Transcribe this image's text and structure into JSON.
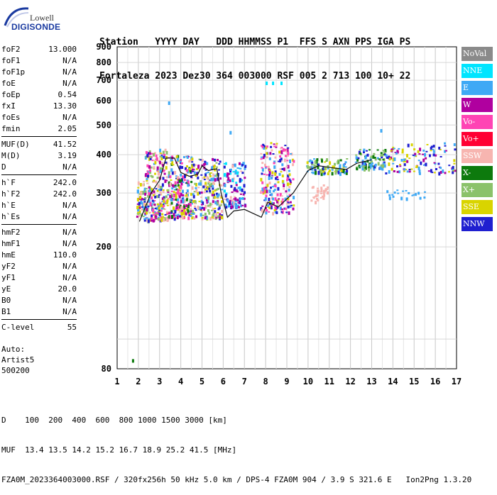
{
  "logo": {
    "line1": "Lowell",
    "line2": "DIGISONDE"
  },
  "header": {
    "line1": "Station   YYYY DAY   DDD HHMMSS P1  FFS S AXN PPS IGA PS",
    "line2": "Fortaleza 2023 Dez30 364 003000 RSF 005 2 713 100 10+ 22"
  },
  "parameters": [
    [
      {
        "label": "foF2",
        "value": "13.000"
      },
      {
        "label": "foF1",
        "value": "N/A"
      },
      {
        "label": "foF1p",
        "value": "N/A"
      },
      {
        "label": "foE",
        "value": "N/A"
      },
      {
        "label": "foEp",
        "value": "0.54"
      },
      {
        "label": "fxI",
        "value": "13.30"
      },
      {
        "label": "foEs",
        "value": "N/A"
      },
      {
        "label": "fmin",
        "value": "2.05"
      }
    ],
    [
      {
        "label": "MUF(D)",
        "value": "41.52"
      },
      {
        "label": "M(D)",
        "value": "3.19"
      },
      {
        "label": "D",
        "value": "N/A"
      }
    ],
    [
      {
        "label": "h`F",
        "value": "242.0"
      },
      {
        "label": "h`F2",
        "value": "242.0"
      },
      {
        "label": "h`E",
        "value": "N/A"
      },
      {
        "label": "h`Es",
        "value": "N/A"
      }
    ],
    [
      {
        "label": "hmF2",
        "value": "N/A"
      },
      {
        "label": "hmF1",
        "value": "N/A"
      },
      {
        "label": "hmE",
        "value": "110.0"
      },
      {
        "label": "yF2",
        "value": "N/A"
      },
      {
        "label": "yF1",
        "value": "N/A"
      },
      {
        "label": "yE",
        "value": "20.0"
      },
      {
        "label": "B0",
        "value": "N/A"
      },
      {
        "label": "B1",
        "value": "N/A"
      }
    ],
    [
      {
        "label": "C-level",
        "value": "55"
      }
    ]
  ],
  "auto": {
    "line1": "Auto:",
    "line2": "Artist5",
    "line3": "500200"
  },
  "legend": [
    {
      "label": "NoVal",
      "color": "#8a8a8a"
    },
    {
      "label": "NNE",
      "color": "#00e5ff"
    },
    {
      "label": "E",
      "color": "#3fa9f5"
    },
    {
      "label": "W",
      "color": "#b0009f"
    },
    {
      "label": "Vo-",
      "color": "#ff44b4"
    },
    {
      "label": "Vo+",
      "color": "#ff0033"
    },
    {
      "label": "SSW",
      "color": "#f7b5b0"
    },
    {
      "label": "X-",
      "color": "#0d7a0d"
    },
    {
      "label": "X+",
      "color": "#8bc26a"
    },
    {
      "label": "SSE",
      "color": "#d9d400"
    },
    {
      "label": "NNW",
      "color": "#1f1fd0"
    }
  ],
  "footer": {
    "line1": "D    100  200  400  600  800 1000 1500 3000 [km]",
    "line2": "MUF  13.4 13.5 14.2 15.2 16.7 18.9 25.2 41.5 [MHz]",
    "line3": "FZA0M_2023364003000.RSF / 320fx256h 50 kHz 5.0 km / DPS-4 FZA0M 904 / 3.9 S 321.6 E   Ion2Png 1.3.20"
  },
  "chart_data": {
    "type": "scatter",
    "x_ticks": [
      "1",
      "2",
      "3",
      "4",
      "5",
      "6",
      "7",
      "8",
      "9",
      "10",
      "11",
      "12",
      "13",
      "14",
      "15",
      "16",
      "17"
    ],
    "y_ticks": [
      "80",
      "200",
      "300",
      "400",
      "500",
      "600",
      "700",
      "800",
      "900"
    ],
    "xlim": [
      1,
      17
    ],
    "ylim": [
      80,
      900
    ],
    "y_scale": "log",
    "grid": true,
    "echo_clusters": [
      {
        "f": [
          1.9,
          2.3
        ],
        "h": [
          245,
          330
        ],
        "colors": [
          "SSW",
          "W",
          "SSE",
          "E",
          "X+",
          "NNW"
        ],
        "n": 70
      },
      {
        "f": [
          2.3,
          3.4
        ],
        "h": [
          245,
          420
        ],
        "colors": [
          "SSW",
          "W",
          "Vo-",
          "E",
          "SSE",
          "NNW",
          "X+"
        ],
        "n": 260
      },
      {
        "f": [
          3.4,
          4.5
        ],
        "h": [
          250,
          400
        ],
        "colors": [
          "SSW",
          "W",
          "Vo-",
          "E",
          "SSE",
          "NNW",
          "X-"
        ],
        "n": 240
      },
      {
        "f": [
          4.5,
          5.9
        ],
        "h": [
          250,
          390
        ],
        "colors": [
          "SSW",
          "W",
          "E",
          "SSE",
          "NNW",
          "X+"
        ],
        "n": 220
      },
      {
        "f": [
          6.0,
          7.0
        ],
        "h": [
          270,
          380
        ],
        "colors": [
          "E",
          "W",
          "NNE",
          "SSW",
          "NNW"
        ],
        "n": 120
      },
      {
        "f": [
          7.7,
          9.3
        ],
        "h": [
          260,
          440
        ],
        "colors": [
          "SSW",
          "W",
          "Vo-",
          "SSE",
          "NNW",
          "E"
        ],
        "n": 220
      },
      {
        "f": [
          9.9,
          11.8
        ],
        "h": [
          350,
          390
        ],
        "colors": [
          "NNW",
          "X-",
          "X+",
          "E",
          "SSE"
        ],
        "n": 100
      },
      {
        "f": [
          10.1,
          10.9
        ],
        "h": [
          280,
          320
        ],
        "colors": [
          "SSW"
        ],
        "n": 35
      },
      {
        "f": [
          12.2,
          13.6
        ],
        "h": [
          360,
          420
        ],
        "colors": [
          "X-",
          "X+",
          "NNW",
          "E"
        ],
        "n": 90
      },
      {
        "f": [
          13.6,
          16.9
        ],
        "h": [
          350,
          440
        ],
        "colors": [
          "NNW",
          "E",
          "W",
          "SSE"
        ],
        "n": 120
      },
      {
        "f": [
          13.6,
          15.5
        ],
        "h": [
          290,
          310
        ],
        "colors": [
          "E"
        ],
        "n": 20
      }
    ],
    "isolated_points": [
      {
        "f": 1.7,
        "h": 86,
        "color": "X-"
      },
      {
        "f": 3.4,
        "h": 597,
        "color": "E"
      },
      {
        "f": 8.0,
        "h": 693,
        "color": "NNE"
      },
      {
        "f": 8.3,
        "h": 693,
        "color": "NNE"
      },
      {
        "f": 8.7,
        "h": 693,
        "color": "NNE"
      },
      {
        "f": 6.3,
        "h": 478,
        "color": "E"
      },
      {
        "f": 13.4,
        "h": 485,
        "color": "E"
      }
    ],
    "profile_line": {
      "f": [
        2.05,
        2.6,
        3.0,
        3.3,
        3.7,
        4.0,
        4.4,
        4.8,
        5.0,
        5.3,
        5.7,
        5.9,
        6.2,
        6.5,
        7.0,
        7.8,
        8.1,
        8.6,
        9.3,
        10.0,
        10.5,
        11.2,
        11.8,
        12.3,
        13.0
      ],
      "h": [
        242,
        300,
        330,
        390,
        390,
        350,
        340,
        345,
        368,
        355,
        360,
        300,
        250,
        262,
        265,
        250,
        280,
        270,
        300,
        355,
        368,
        362,
        358,
        375,
        385
      ]
    }
  }
}
